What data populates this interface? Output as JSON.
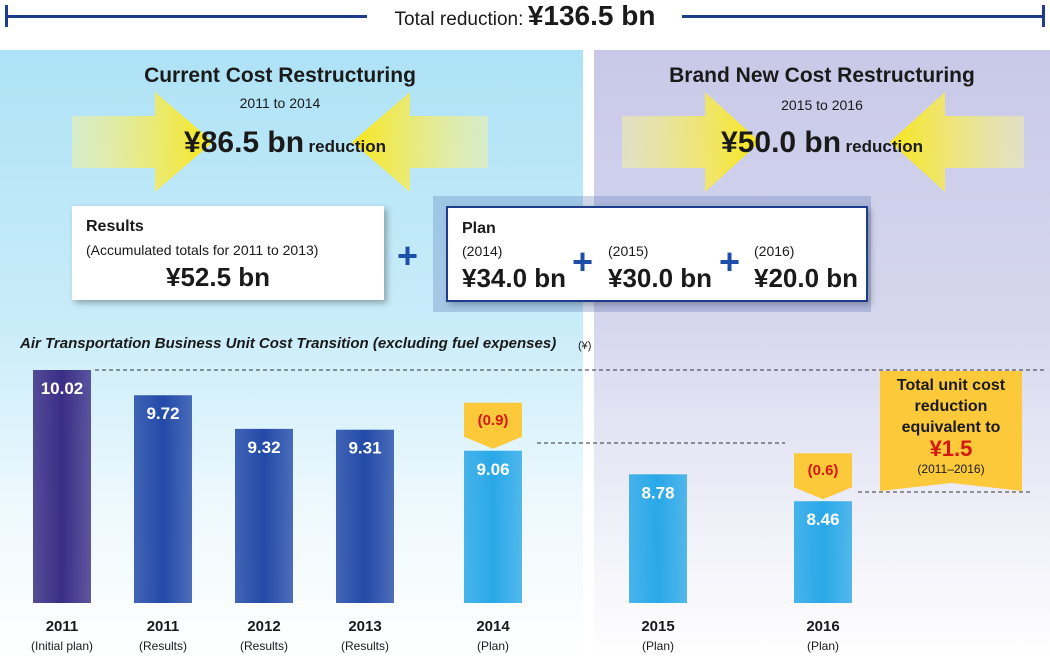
{
  "header": {
    "total_label": "Total reduction:",
    "total_value": "¥136.5 bn"
  },
  "current": {
    "title": "Current Cost Restructuring",
    "period": "2011 to 2014",
    "amount": "¥86.5 bn",
    "suffix": "reduction",
    "results_title": "Results",
    "results_note": "(Accumulated totals for 2011 to 2013)",
    "results_value": "¥52.5 bn"
  },
  "brand_new": {
    "title": "Brand New Cost Restructuring",
    "period": "2015 to 2016",
    "amount": "¥50.0 bn",
    "suffix": "reduction"
  },
  "plan": {
    "title": "Plan",
    "items": [
      {
        "year": "(2014)",
        "value": "¥34.0 bn"
      },
      {
        "year": "(2015)",
        "value": "¥30.0 bn"
      },
      {
        "year": "(2016)",
        "value": "¥20.0 bn"
      }
    ],
    "plus": "+"
  },
  "chart_data": {
    "type": "bar",
    "title": "Air Transportation Business Unit Cost Transition (excluding fuel expenses)",
    "unit": "(¥)",
    "categories": [
      "2011",
      "2011",
      "2012",
      "2013",
      "2014",
      "2015",
      "2016"
    ],
    "sublabels": [
      "(Initial plan)",
      "(Results)",
      "(Results)",
      "(Results)",
      "(Plan)",
      "(Plan)",
      "(Plan)"
    ],
    "values": [
      10.02,
      9.72,
      9.32,
      9.31,
      9.06,
      8.78,
      8.46
    ],
    "value_labels": [
      "10.02",
      "9.72",
      "9.32",
      "9.31",
      "9.06",
      "8.78",
      "8.46"
    ],
    "bar_colors": [
      "#3b2d86",
      "#234aa8",
      "#234aa8",
      "#234aa8",
      "#29a8e8",
      "#29a8e8",
      "#29a8e8"
    ],
    "annotations": [
      {
        "bar_index": 4,
        "label": "(0.9)"
      },
      {
        "bar_index": 6,
        "label": "(0.6)"
      }
    ],
    "callout": {
      "line1": "Total unit cost",
      "line2": "reduction",
      "line3": "equivalent to",
      "amount": "¥1.5",
      "years": "(2011–2016)"
    },
    "colors": {
      "annotation_fill": "#fcc93a",
      "annotation_text": "#d3180e",
      "dark_blue": "#1e3c8c"
    }
  }
}
